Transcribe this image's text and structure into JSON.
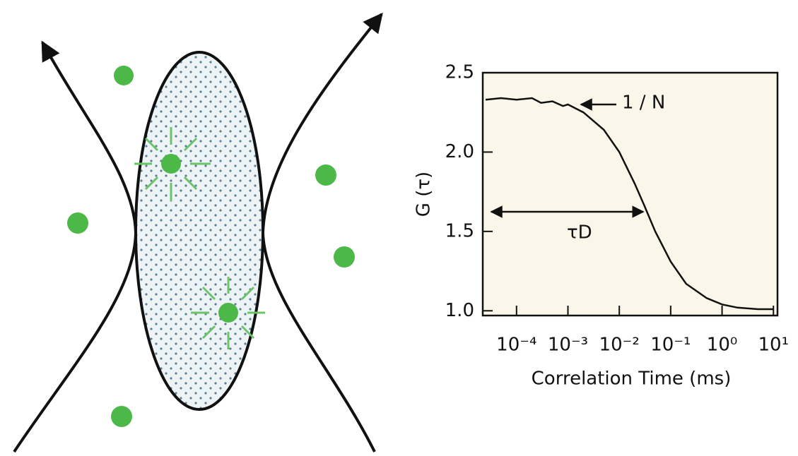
{
  "chart_data": {
    "type": "line",
    "x_label": "Correlation Time (ms)",
    "y_label": "G (τ)",
    "x": [
      2.5e-05,
      5e-05,
      0.0001,
      0.0002,
      0.0003,
      0.0005,
      0.0008,
      0.001,
      0.002,
      0.005,
      0.01,
      0.02,
      0.03,
      0.05,
      0.1,
      0.2,
      0.5,
      1,
      2,
      5,
      10
    ],
    "values": [
      2.33,
      2.34,
      2.33,
      2.34,
      2.31,
      2.32,
      2.29,
      2.3,
      2.25,
      2.14,
      2.0,
      1.8,
      1.67,
      1.5,
      1.31,
      1.17,
      1.08,
      1.04,
      1.02,
      1.01,
      1.01
    ],
    "color": "#111111",
    "xscale": "log",
    "xlim": [
      2.2e-05,
      12
    ],
    "ylim": [
      0.97,
      2.5
    ],
    "xticks": [
      {
        "value": 0.0001,
        "label": "10⁻⁴"
      },
      {
        "value": 0.001,
        "label": "10⁻³"
      },
      {
        "value": 0.01,
        "label": "10⁻²"
      },
      {
        "value": 0.1,
        "label": "10⁻¹"
      },
      {
        "value": 1,
        "label": "10⁰"
      },
      {
        "value": 10,
        "label": "10¹"
      }
    ],
    "yticks": [
      {
        "value": 1,
        "label": "1.0"
      },
      1.5,
      {
        "value": 2,
        "label": "2.0"
      },
      2.5
    ],
    "annotations": [
      "1 / N",
      "τD"
    ]
  }
}
